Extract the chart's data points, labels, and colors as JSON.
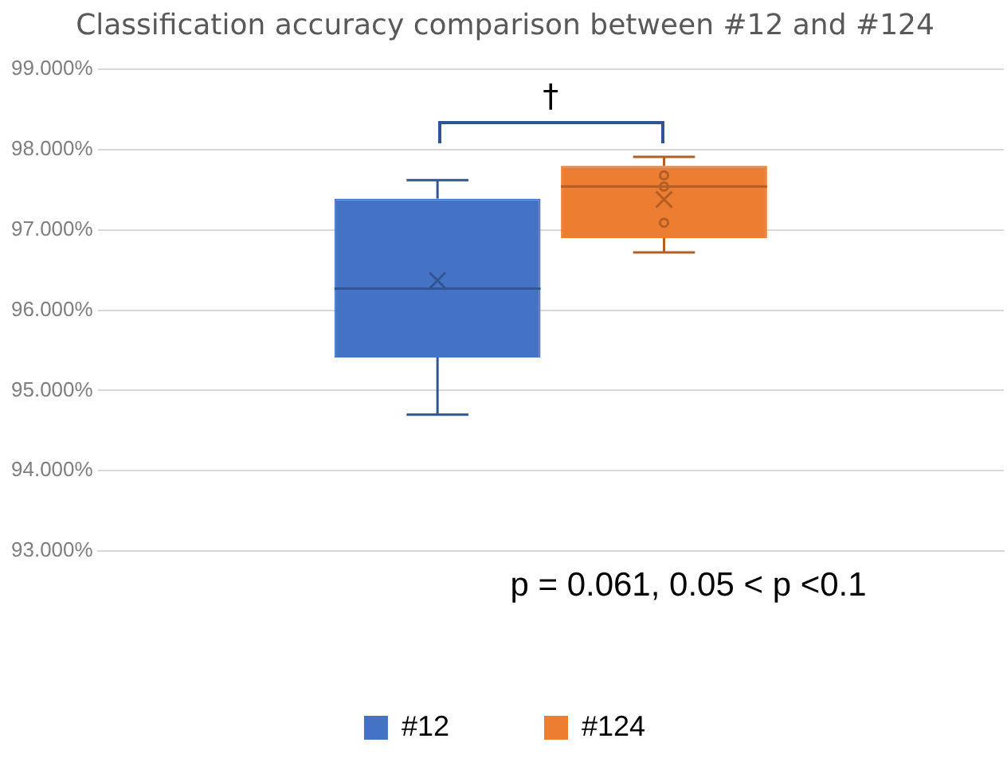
{
  "chart_data": {
    "type": "box",
    "title": "Classification accuracy comparison between #12 and #124",
    "categories": [
      null
    ],
    "series": [
      {
        "name": "#12",
        "color": "#4472c4",
        "boxes": [
          {
            "low": 94.7,
            "q1": 95.41,
            "median": 96.27,
            "q3": 97.39,
            "high": 97.62,
            "mean": 96.37
          }
        ]
      },
      {
        "name": "#124",
        "color": "#ed7d31",
        "boxes": [
          {
            "low": 96.72,
            "q1": 96.9,
            "median": 97.54,
            "q3": 97.8,
            "high": 97.91,
            "mean": 97.38,
            "outliers": [
              97.68,
              97.54,
              97.09
            ]
          }
        ]
      }
    ],
    "ylim": [
      93,
      99
    ],
    "yticks": [
      {
        "value": 93,
        "label": "93.000%"
      },
      {
        "value": 94,
        "label": "94.000%"
      },
      {
        "value": 95,
        "label": "95.000%"
      },
      {
        "value": 96,
        "label": "96.000%"
      },
      {
        "value": 97,
        "label": "97.000%"
      },
      {
        "value": 98,
        "label": "98.000%"
      },
      {
        "value": 99,
        "label": "99.000%"
      }
    ],
    "grid": "y",
    "legend": "bottom",
    "annotations": [
      "†",
      "p = 0.061, 0.05 < p <0.1"
    ]
  }
}
